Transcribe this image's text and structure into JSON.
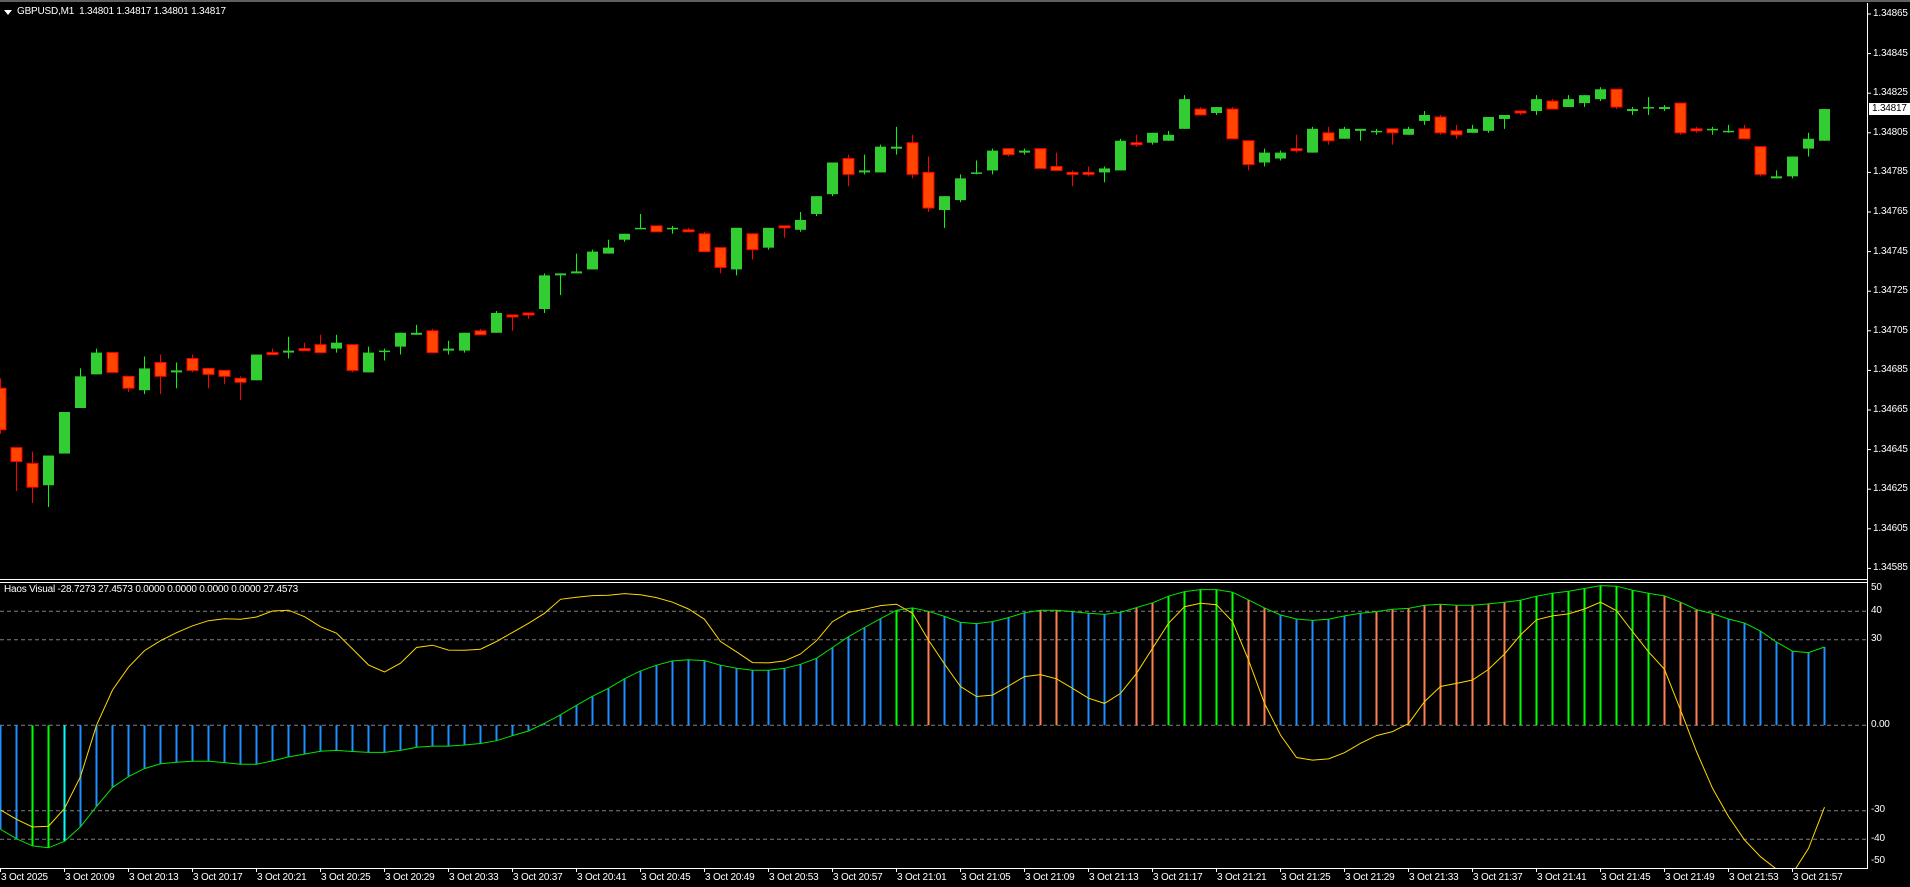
{
  "header": {
    "symbol": "GBPUSD,M1",
    "ohlc_text": "1.34801 1.34817 1.34801 1.34817",
    "menu_icon": "triangle-down-icon"
  },
  "indicator_header": {
    "text": "Haos Visual -28.7273 27.4573 0.0000 0.0000 0.0000 0.0000 27.4573"
  },
  "current_price": "1.34817",
  "colors": {
    "background": "#000000",
    "bull_body": "#32cd32",
    "bull_wick": "#00ff00",
    "bear_body": "#ff4500",
    "bear_wick": "#ff0000",
    "hist_blue": "#1e90ff",
    "hist_green": "#00ff00",
    "hist_orange": "#ff7f50",
    "hist_cyan": "#00ffff",
    "signal_line": "#00e600",
    "yellow_line": "#ffd700",
    "level_lines": "#808080"
  },
  "chart_data": [
    {
      "type": "candlestick",
      "title": "GBPUSD,M1",
      "ylim": [
        1.34575,
        1.34875
      ],
      "y_tick_labels": [
        "1.34865",
        "1.34845",
        "1.34825",
        "1.34805",
        "1.34785",
        "1.34765",
        "1.34745",
        "1.34725",
        "1.34705",
        "1.34685",
        "1.34665",
        "1.34645",
        "1.34625",
        "1.34605",
        "1.34585"
      ],
      "x_tick_labels": [
        "3 Oct 2025",
        "3 Oct 20:09",
        "3 Oct 20:13",
        "3 Oct 20:17",
        "3 Oct 20:21",
        "3 Oct 20:25",
        "3 Oct 20:29",
        "3 Oct 20:33",
        "3 Oct 20:37",
        "3 Oct 20:41",
        "3 Oct 20:45",
        "3 Oct 20:49",
        "3 Oct 20:53",
        "3 Oct 20:57",
        "3 Oct 21:01",
        "3 Oct 21:05",
        "3 Oct 21:09",
        "3 Oct 21:13",
        "3 Oct 21:17",
        "3 Oct 21:21",
        "3 Oct 21:25",
        "3 Oct 21:29",
        "3 Oct 21:33",
        "3 Oct 21:37",
        "3 Oct 21:41",
        "3 Oct 21:45",
        "3 Oct 21:49",
        "3 Oct 21:53",
        "3 Oct 21:57"
      ],
      "ohlc_fields": [
        "open",
        "high",
        "low",
        "close"
      ],
      "ohlc": [
        [
          1.34676,
          1.34681,
          1.34653,
          1.34655
        ],
        [
          1.34646,
          1.34646,
          1.34624,
          1.34639
        ],
        [
          1.34638,
          1.34644,
          1.34618,
          1.34626
        ],
        [
          1.34627,
          1.34642,
          1.34616,
          1.34642
        ],
        [
          1.34643,
          1.34664,
          1.34643,
          1.34664
        ],
        [
          1.34666,
          1.34686,
          1.34666,
          1.34682
        ],
        [
          1.34683,
          1.34696,
          1.34683,
          1.34694
        ],
        [
          1.34694,
          1.34694,
          1.34684,
          1.34684
        ],
        [
          1.34682,
          1.34682,
          1.34674,
          1.34676
        ],
        [
          1.34675,
          1.34692,
          1.34673,
          1.34686
        ],
        [
          1.34689,
          1.34693,
          1.34673,
          1.34682
        ],
        [
          1.34684,
          1.34689,
          1.34676,
          1.34685
        ],
        [
          1.34691,
          1.34693,
          1.34684,
          1.34685
        ],
        [
          1.34686,
          1.34686,
          1.34676,
          1.34683
        ],
        [
          1.34685,
          1.34685,
          1.34678,
          1.34682
        ],
        [
          1.34681,
          1.34682,
          1.3467,
          1.34679
        ],
        [
          1.3468,
          1.34693,
          1.3468,
          1.34693
        ],
        [
          1.34694,
          1.34696,
          1.34693,
          1.34693
        ],
        [
          1.34694,
          1.34702,
          1.34691,
          1.34695
        ],
        [
          1.34696,
          1.34699,
          1.34695,
          1.34695
        ],
        [
          1.34698,
          1.34703,
          1.34694,
          1.34694
        ],
        [
          1.34696,
          1.34703,
          1.34694,
          1.34699
        ],
        [
          1.34698,
          1.34698,
          1.34684,
          1.34685
        ],
        [
          1.34684,
          1.34697,
          1.34684,
          1.34694
        ],
        [
          1.34695,
          1.34696,
          1.3469,
          1.34695
        ],
        [
          1.34697,
          1.34704,
          1.34693,
          1.34704
        ],
        [
          1.34703,
          1.34708,
          1.34703,
          1.34704
        ],
        [
          1.34705,
          1.34706,
          1.34694,
          1.34694
        ],
        [
          1.34695,
          1.347,
          1.34693,
          1.34696
        ],
        [
          1.34695,
          1.34704,
          1.34694,
          1.34704
        ],
        [
          1.34705,
          1.34706,
          1.34703,
          1.34703
        ],
        [
          1.34704,
          1.34715,
          1.34704,
          1.34714
        ],
        [
          1.34713,
          1.34713,
          1.34705,
          1.34712
        ],
        [
          1.34714,
          1.34714,
          1.34711,
          1.34713
        ],
        [
          1.34716,
          1.34734,
          1.34714,
          1.34733
        ],
        [
          1.34733,
          1.34734,
          1.34723,
          1.34734
        ],
        [
          1.34734,
          1.34744,
          1.34734,
          1.34735
        ],
        [
          1.34736,
          1.34746,
          1.34736,
          1.34745
        ],
        [
          1.34744,
          1.34751,
          1.34744,
          1.34747
        ],
        [
          1.34751,
          1.34754,
          1.3475,
          1.34754
        ],
        [
          1.34757,
          1.34764,
          1.34757,
          1.34757
        ],
        [
          1.34758,
          1.34758,
          1.34755,
          1.34755
        ],
        [
          1.34757,
          1.34758,
          1.34754,
          1.34757
        ],
        [
          1.34756,
          1.34757,
          1.34755,
          1.34755
        ],
        [
          1.34754,
          1.34755,
          1.34745,
          1.34745
        ],
        [
          1.34747,
          1.34747,
          1.34734,
          1.34737
        ],
        [
          1.34736,
          1.34757,
          1.34733,
          1.34757
        ],
        [
          1.34754,
          1.34754,
          1.34741,
          1.34746
        ],
        [
          1.34747,
          1.34757,
          1.34746,
          1.34757
        ],
        [
          1.34758,
          1.34758,
          1.34752,
          1.34757
        ],
        [
          1.34756,
          1.34765,
          1.34755,
          1.34761
        ],
        [
          1.34764,
          1.34773,
          1.34763,
          1.34773
        ],
        [
          1.34774,
          1.3479,
          1.34773,
          1.3479
        ],
        [
          1.34792,
          1.34794,
          1.34778,
          1.34784
        ],
        [
          1.34785,
          1.34794,
          1.34784,
          1.34786
        ],
        [
          1.34785,
          1.34799,
          1.34785,
          1.34798
        ],
        [
          1.34797,
          1.34808,
          1.34794,
          1.34798
        ],
        [
          1.348,
          1.34804,
          1.34782,
          1.34784
        ],
        [
          1.34785,
          1.34793,
          1.34765,
          1.34767
        ],
        [
          1.34766,
          1.34773,
          1.34757,
          1.34773
        ],
        [
          1.34771,
          1.34784,
          1.3477,
          1.34782
        ],
        [
          1.34785,
          1.34791,
          1.34784,
          1.34785
        ],
        [
          1.34786,
          1.34797,
          1.34784,
          1.34796
        ],
        [
          1.34797,
          1.34797,
          1.34793,
          1.34794
        ],
        [
          1.34795,
          1.34797,
          1.34794,
          1.34796
        ],
        [
          1.34797,
          1.34797,
          1.34787,
          1.34787
        ],
        [
          1.34788,
          1.34795,
          1.34786,
          1.34786
        ],
        [
          1.34785,
          1.34786,
          1.34778,
          1.34784
        ],
        [
          1.34785,
          1.34788,
          1.34783,
          1.34784
        ],
        [
          1.34785,
          1.34788,
          1.3478,
          1.34787
        ],
        [
          1.34786,
          1.34802,
          1.34786,
          1.34801
        ],
        [
          1.348,
          1.34804,
          1.34798,
          1.34799
        ],
        [
          1.348,
          1.34805,
          1.34799,
          1.34805
        ],
        [
          1.34801,
          1.34806,
          1.34801,
          1.34804
        ],
        [
          1.34807,
          1.34824,
          1.34807,
          1.34822
        ],
        [
          1.34817,
          1.34818,
          1.34814,
          1.34814
        ],
        [
          1.34815,
          1.34818,
          1.34814,
          1.34818
        ],
        [
          1.34817,
          1.34818,
          1.34802,
          1.34802
        ],
        [
          1.34801,
          1.34801,
          1.34786,
          1.34789
        ],
        [
          1.3479,
          1.34797,
          1.34788,
          1.34795
        ],
        [
          1.34792,
          1.34796,
          1.34791,
          1.34795
        ],
        [
          1.34797,
          1.34804,
          1.34795,
          1.34796
        ],
        [
          1.34795,
          1.34808,
          1.34795,
          1.34807
        ],
        [
          1.34805,
          1.34808,
          1.34799,
          1.34801
        ],
        [
          1.34802,
          1.34808,
          1.34802,
          1.34807
        ],
        [
          1.34806,
          1.34807,
          1.34801,
          1.34807
        ],
        [
          1.34806,
          1.34807,
          1.34804,
          1.34806
        ],
        [
          1.34807,
          1.34807,
          1.34799,
          1.34805
        ],
        [
          1.34804,
          1.34808,
          1.34804,
          1.34807
        ],
        [
          1.34811,
          1.34816,
          1.34809,
          1.34814
        ],
        [
          1.34813,
          1.34814,
          1.34804,
          1.34805
        ],
        [
          1.34806,
          1.34809,
          1.34802,
          1.34804
        ],
        [
          1.34805,
          1.34809,
          1.34805,
          1.34807
        ],
        [
          1.34806,
          1.34813,
          1.34805,
          1.34813
        ],
        [
          1.34812,
          1.34814,
          1.34807,
          1.34814
        ],
        [
          1.34816,
          1.34816,
          1.34814,
          1.34815
        ],
        [
          1.34816,
          1.34824,
          1.34814,
          1.34822
        ],
        [
          1.34821,
          1.34822,
          1.34817,
          1.34817
        ],
        [
          1.34818,
          1.34824,
          1.34818,
          1.34822
        ],
        [
          1.3482,
          1.34824,
          1.34818,
          1.34824
        ],
        [
          1.34822,
          1.34828,
          1.34821,
          1.34827
        ],
        [
          1.34827,
          1.34827,
          1.34817,
          1.34818
        ],
        [
          1.34816,
          1.34818,
          1.34814,
          1.34817
        ],
        [
          1.34818,
          1.34823,
          1.34814,
          1.34818
        ],
        [
          1.34817,
          1.34819,
          1.34816,
          1.34818
        ],
        [
          1.3482,
          1.3482,
          1.34804,
          1.34805
        ],
        [
          1.34807,
          1.34808,
          1.34805,
          1.34806
        ],
        [
          1.34807,
          1.34808,
          1.34804,
          1.34807
        ],
        [
          1.34806,
          1.34809,
          1.34805,
          1.34806
        ],
        [
          1.34807,
          1.34809,
          1.34802,
          1.34802
        ],
        [
          1.34798,
          1.34798,
          1.34783,
          1.34784
        ],
        [
          1.34782,
          1.34786,
          1.34782,
          1.34783
        ],
        [
          1.34783,
          1.34793,
          1.34782,
          1.34793
        ],
        [
          1.34797,
          1.34805,
          1.34793,
          1.34802
        ],
        [
          1.34801,
          1.34817,
          1.34801,
          1.34817
        ]
      ]
    },
    {
      "type": "bar",
      "title": "Haos Visual",
      "ylim": [
        -50,
        50
      ],
      "y_tick_labels": [
        "50",
        "40",
        "30",
        "0.00",
        "-30",
        "-40",
        "-50"
      ],
      "levels": [
        40,
        30,
        0,
        -30,
        -40
      ],
      "histogram": [
        -36.5,
        -39.8,
        -42.3,
        -43.0,
        -40.7,
        -35.6,
        -28.5,
        -21.8,
        -18.0,
        -15.2,
        -13.5,
        -13.0,
        -12.6,
        -12.6,
        -13.1,
        -13.7,
        -13.7,
        -12.5,
        -11.1,
        -10.1,
        -9.1,
        -8.8,
        -9.2,
        -9.5,
        -9.5,
        -8.8,
        -7.7,
        -7.3,
        -7.3,
        -6.9,
        -6.4,
        -5.4,
        -3.6,
        -2.0,
        0.7,
        3.7,
        7.0,
        10.2,
        13.0,
        16.3,
        19.1,
        21.1,
        22.6,
        23.0,
        22.7,
        21.1,
        20.0,
        19.3,
        19.3,
        20.0,
        21.4,
        23.5,
        27.3,
        31.1,
        34.3,
        37.4,
        40.4,
        41.2,
        40.0,
        38.2,
        36.1,
        35.7,
        36.4,
        37.8,
        39.5,
        40.4,
        40.4,
        39.9,
        39.3,
        38.9,
        39.6,
        41.3,
        43.0,
        45.3,
        46.9,
        47.6,
        47.6,
        46.7,
        44.0,
        41.2,
        38.7,
        37.3,
        36.8,
        37.2,
        38.4,
        39.3,
        39.9,
        40.7,
        41.0,
        42.1,
        42.5,
        42.1,
        42.1,
        42.6,
        43.2,
        43.9,
        45.3,
        46.3,
        47.0,
        48.0,
        49.0,
        48.8,
        47.4,
        46.3,
        45.4,
        43.2,
        40.6,
        39.2,
        37.3,
        35.9,
        33.1,
        29.2,
        26.0,
        25.5,
        27.4573
      ],
      "histogram_colors": "bbggcbbbbbbbbbbbbbbbbbbbbbbbbbbbbbbbbbbbbbbbbbbbbbbbbbbbggobbbbbboobbbboogggggoobbbbbbooooooooogggggggggoooobbbbbbbb",
      "line_yellow": [
        -29.7,
        -33,
        -35.7,
        -35.4,
        -29.2,
        -18,
        0,
        12.4,
        20.4,
        26.2,
        29.7,
        32.5,
        34.9,
        36.7,
        37.4,
        37.2,
        38.0,
        40.1,
        40.4,
        38.1,
        34.6,
        32.3,
        26.8,
        21.2,
        18.7,
        21.8,
        27.3,
        28.1,
        26.4,
        26.3,
        26.7,
        29.4,
        32.6,
        35.8,
        39.3,
        44.2,
        44.9,
        45.5,
        45.6,
        46.2,
        45.8,
        44.8,
        43.2,
        40.8,
        37.2,
        29.4,
        25.8,
        22.0,
        21.9,
        22.6,
        25.0,
        29.7,
        36.4,
        39.6,
        40.7,
        42.0,
        42.5,
        39.3,
        29.9,
        21.5,
        13.6,
        10.1,
        10.6,
        13.8,
        17.1,
        17.8,
        16.3,
        13.0,
        9.5,
        7.7,
        11.2,
        18.2,
        27.0,
        35.8,
        41.6,
        42.8,
        42.3,
        36.4,
        22.9,
        7.7,
        -3.4,
        -11.3,
        -12.2,
        -11.8,
        -9.6,
        -6.3,
        -3.6,
        -2.2,
        0.6,
        8.3,
        13.6,
        14.7,
        15.9,
        19.6,
        25.0,
        31.7,
        37.0,
        38.4,
        39.1,
        40.8,
        43.2,
        40.2,
        32.9,
        25.8,
        19.6,
        5.4,
        -9.2,
        -22.1,
        -32.0,
        -40.2,
        -46.1,
        -50.5,
        -52.0,
        -43.2,
        -28.7273
      ]
    }
  ]
}
